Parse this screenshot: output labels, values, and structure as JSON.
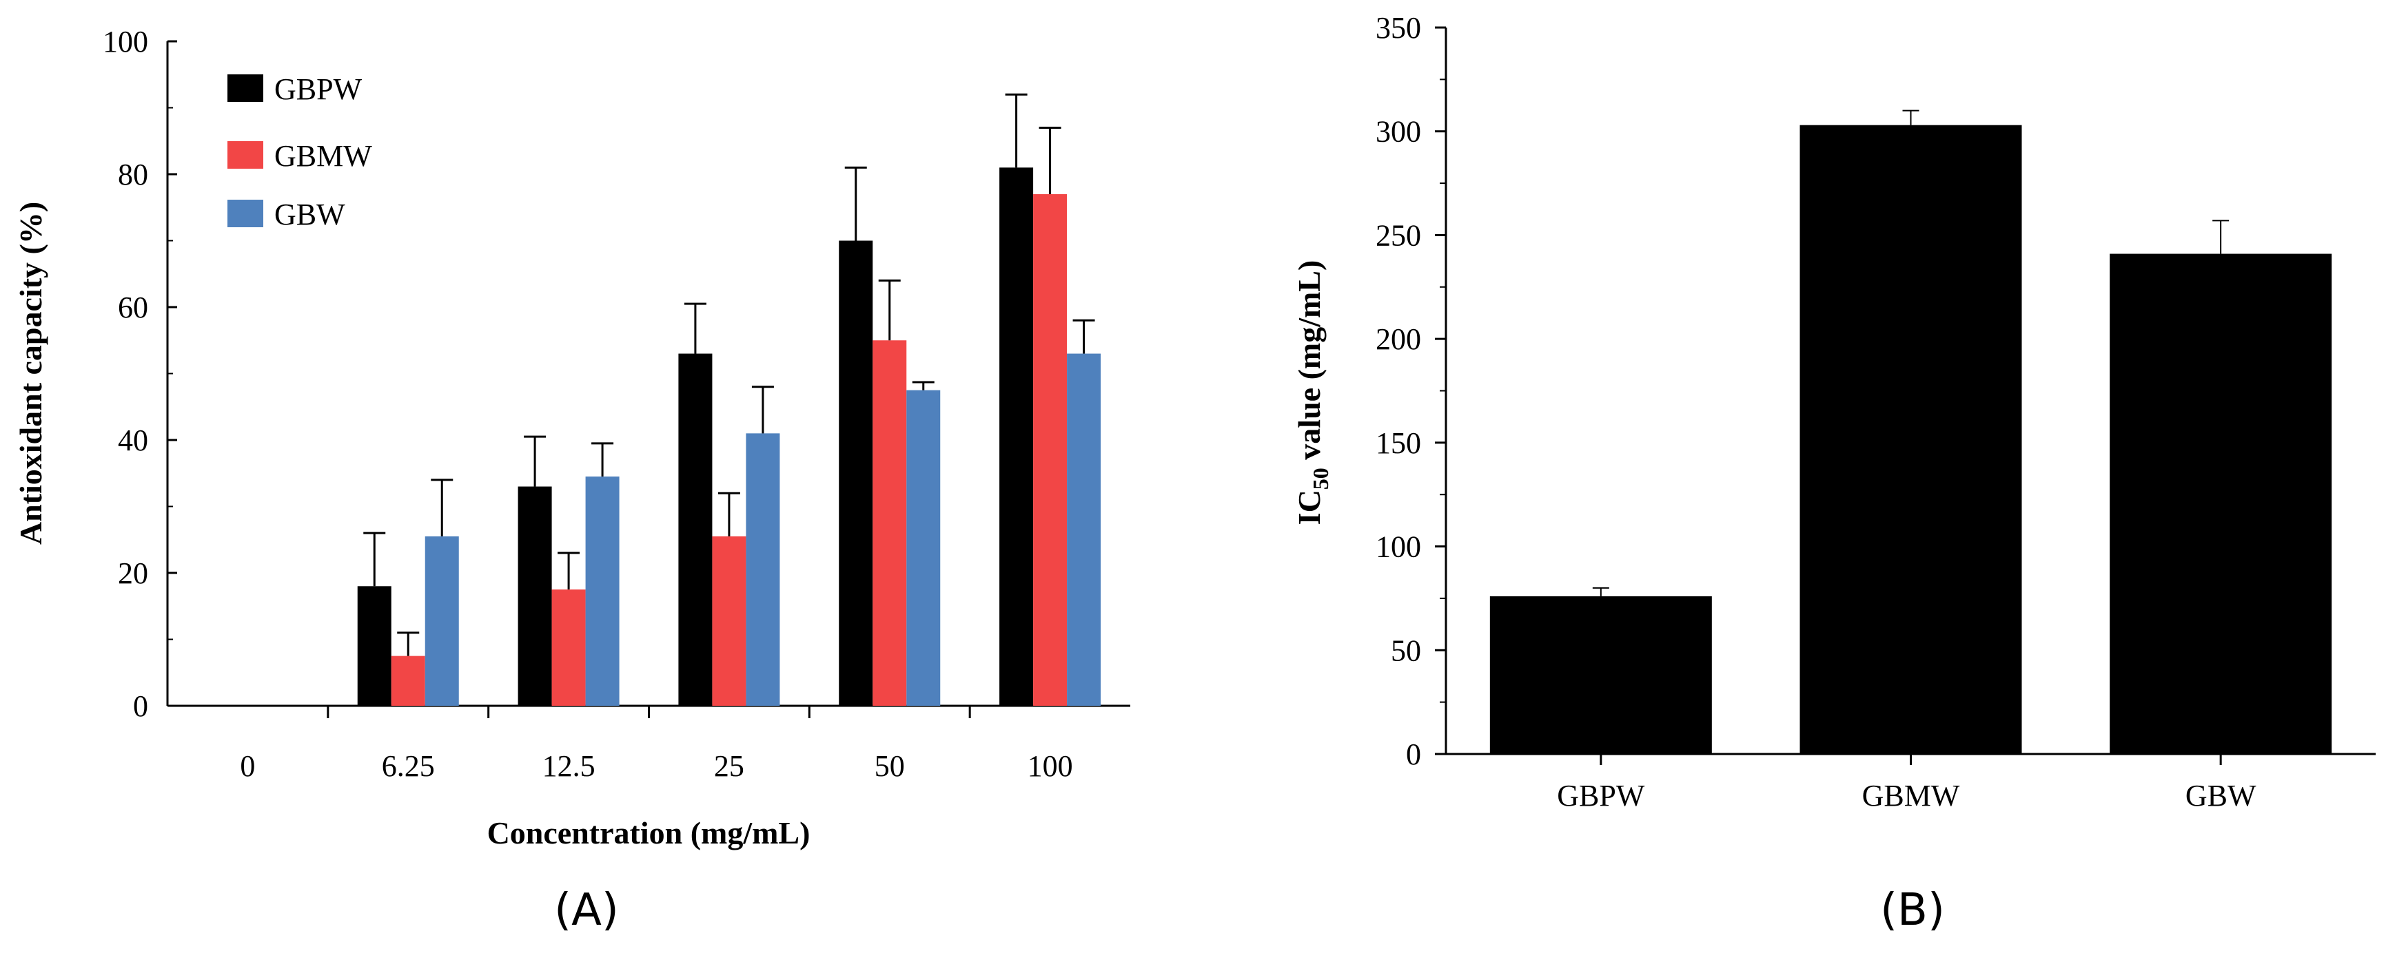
{
  "chart_data": [
    {
      "panel_label": "(A)",
      "type": "bar",
      "xlabel": "Concentration (mg/mL)",
      "ylabel": "Antioxidant capacity (%)",
      "ylim": [
        0,
        100
      ],
      "yticks": [
        "0",
        "20",
        "40",
        "60",
        "80",
        "100"
      ],
      "categories": [
        "0",
        "6.25",
        "12.5",
        "25",
        "50",
        "100"
      ],
      "series": [
        {
          "name": "GBPW",
          "color": "#000000",
          "values": [
            0,
            18,
            33,
            53,
            70,
            81
          ],
          "errors": [
            0,
            8,
            7.5,
            7.5,
            11,
            11
          ]
        },
        {
          "name": "GBMW",
          "color": "#f24646",
          "values": [
            0,
            7.5,
            17.5,
            25.5,
            55,
            77
          ],
          "errors": [
            0,
            3.5,
            5.5,
            6.5,
            9,
            10
          ]
        },
        {
          "name": "GBW",
          "color": "#4f81bd",
          "values": [
            0,
            25.5,
            34.5,
            41,
            47.5,
            53
          ],
          "errors": [
            0,
            8.5,
            5,
            7,
            1.2,
            5
          ]
        }
      ]
    },
    {
      "panel_label": "(B)",
      "type": "bar",
      "xlabel": "",
      "ylabel_main": "IC",
      "ylabel_sub": "50",
      "ylabel_rest": " value (mg/mL)",
      "ylim": [
        0,
        350
      ],
      "yticks": [
        "0",
        "50",
        "100",
        "150",
        "200",
        "250",
        "300",
        "350"
      ],
      "categories": [
        "GBPW",
        "GBMW",
        "GBW"
      ],
      "values": [
        76,
        303,
        241
      ],
      "errors": [
        4,
        7,
        16
      ],
      "color": "#000000"
    }
  ]
}
